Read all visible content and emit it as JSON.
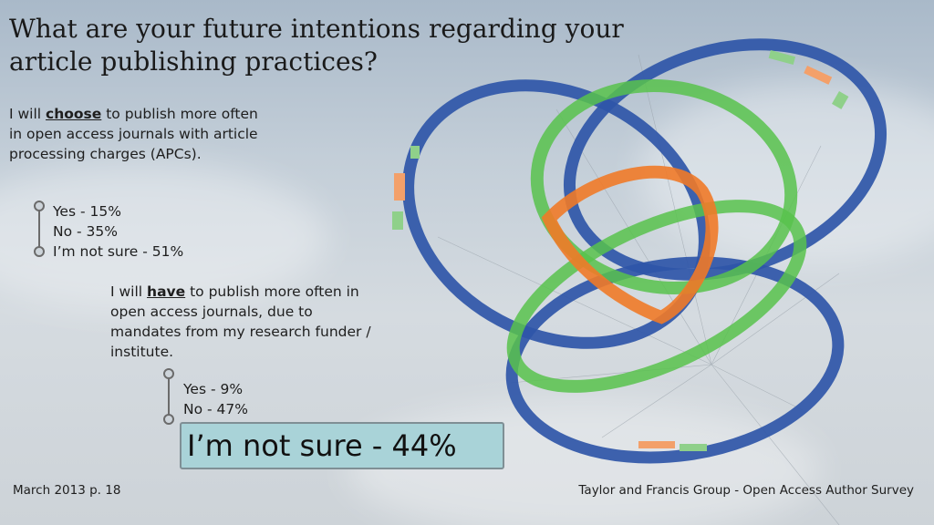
{
  "title": "What are your future intentions regarding your article publishing practices?",
  "question1": {
    "before": "I will ",
    "emphasis": "choose",
    "after": " to publish more often in open access journals with article processing charges (APCs).",
    "options": [
      "Yes - 15%",
      "No - 35%",
      "I’m not sure - 51%"
    ]
  },
  "question2": {
    "before": "I will ",
    "emphasis": "have",
    "after": " to publish more often in open access journals, due to mandates from my research funder / institute.",
    "options": [
      "Yes - 9%",
      "No - 47%"
    ],
    "highlight": "I’m not sure - 44%"
  },
  "footer": {
    "left": "March 2013 p. 18",
    "right": "Taylor and Francis Group - Open Access Author Survey"
  },
  "image": {
    "subject": "kite-rings",
    "colors": {
      "blue": "#2f56a8",
      "green": "#58c24c",
      "orange": "#f07a28"
    }
  }
}
